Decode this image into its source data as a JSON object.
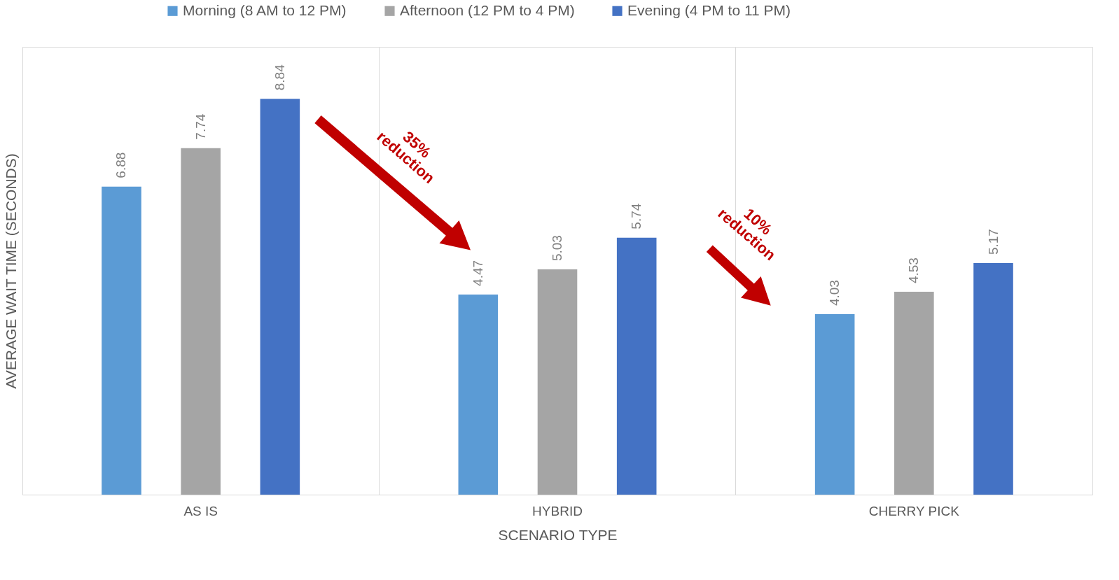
{
  "chart_data": {
    "type": "bar",
    "xlabel": "SCENARIO TYPE",
    "ylabel": "AVERAGE WAIT TIME (SECONDS)",
    "categories": [
      "AS IS",
      "HYBRID",
      "CHERRY PICK"
    ],
    "series": [
      {
        "name": "Morning (8 AM to 12 PM)",
        "color": "#5b9bd5",
        "values": [
          6.88,
          4.47,
          4.03
        ]
      },
      {
        "name": "Afternoon (12 PM to 4 PM)",
        "color": "#a5a5a5",
        "values": [
          7.74,
          5.03,
          4.53
        ]
      },
      {
        "name": "Evening (4 PM to 11 PM)",
        "color": "#4472c4",
        "values": [
          8.84,
          5.74,
          5.17
        ]
      }
    ],
    "ylim": [
      0,
      10
    ],
    "tick_labels": "x",
    "data_labels": true,
    "grid": "x",
    "legend": "top",
    "annotations": [
      "35%\nreduction",
      "10%\nreduction"
    ]
  }
}
